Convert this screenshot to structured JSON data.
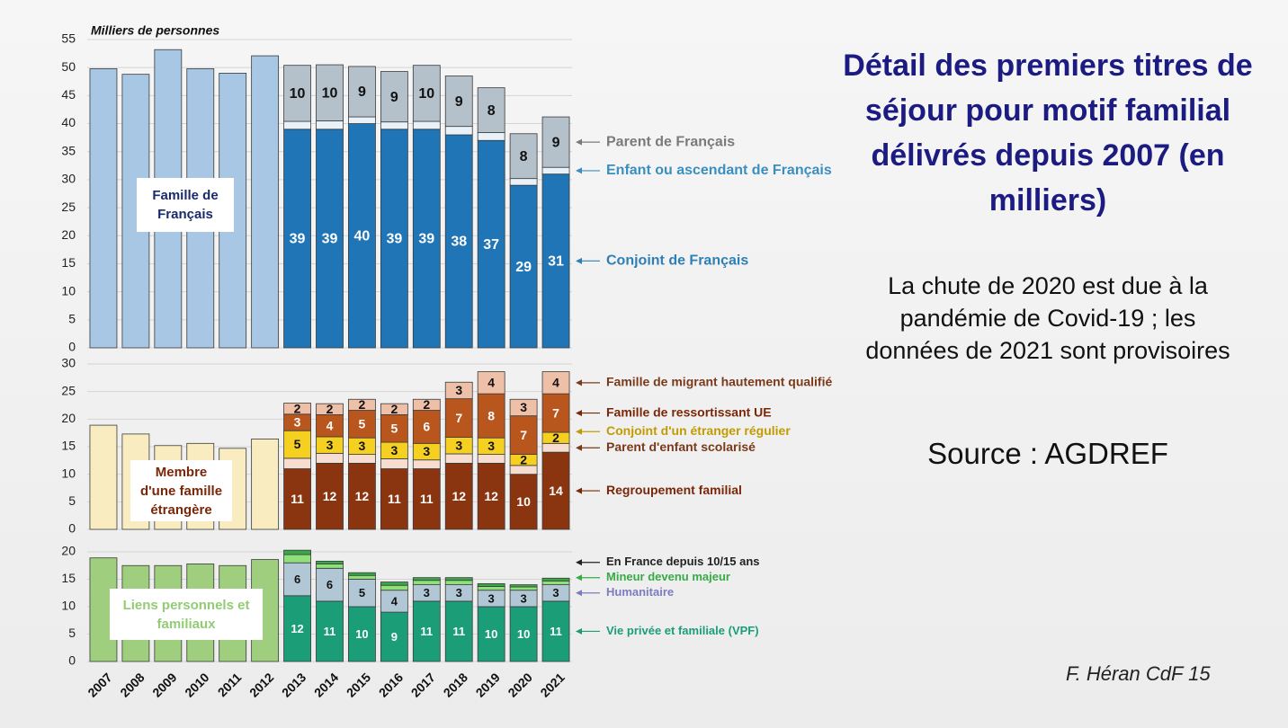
{
  "slide": {
    "title": "Détail des premiers titres de séjour pour motif familial délivrés depuis 2007 (en milliers)",
    "note": "La chute de 2020 est due à la pandémie de Covid-19 ; les données de 2021 sont provisoires",
    "source": "Source : AGDREF",
    "author": "F. Héran CdF  15"
  },
  "chart_data": [
    {
      "type": "bar",
      "stacked": true,
      "y_label": "Milliers de personnes",
      "ylim": [
        0,
        55
      ],
      "yticks": [
        0,
        5,
        10,
        15,
        20,
        25,
        30,
        35,
        40,
        45,
        50,
        55
      ],
      "grid": true,
      "series": [
        {
          "name": "Famille de Français",
          "color": "#a8c7e4",
          "label_color": "#1a2a6a",
          "values": [
            49.8,
            48.8,
            53.2,
            49.8,
            49,
            52.1,
            null,
            null,
            null,
            null,
            null,
            null,
            null,
            null,
            null
          ]
        },
        {
          "name": "Conjoint de Français",
          "color": "#1f75b6",
          "label_color": "#2f7fb5",
          "values": [
            null,
            null,
            null,
            null,
            null,
            null,
            39,
            39,
            40,
            39,
            39,
            38,
            37,
            29,
            31
          ]
        },
        {
          "name": "Enfant ou ascendant de Français",
          "color": "#e9f2f8",
          "label_color": "#3b8fc0",
          "values": [
            null,
            null,
            null,
            null,
            null,
            null,
            1.4,
            1.5,
            1.2,
            1.3,
            1.4,
            1.5,
            1.4,
            1.2,
            1.2
          ]
        },
        {
          "name": "Parent de Français",
          "color": "#b4c0ca",
          "label_color": "#7a7a7a",
          "values": [
            null,
            null,
            null,
            null,
            null,
            null,
            10,
            10,
            9,
            9,
            10,
            9,
            8,
            8,
            9
          ]
        }
      ]
    },
    {
      "type": "bar",
      "stacked": true,
      "ylim": [
        0,
        30
      ],
      "yticks": [
        0,
        5,
        10,
        15,
        20,
        25,
        30
      ],
      "grid": true,
      "series": [
        {
          "name": "Membre d'une famille étrangère",
          "color": "#f8ecc0",
          "label_color": "#7a2608",
          "values": [
            18.9,
            17.3,
            15.2,
            15.6,
            14.7,
            16.4,
            null,
            null,
            null,
            null,
            null,
            null,
            null,
            null,
            null
          ]
        },
        {
          "name": "Regroupement familial",
          "color": "#8a3410",
          "label_color": "#7a2608",
          "values": [
            null,
            null,
            null,
            null,
            null,
            null,
            11,
            12,
            12,
            11,
            11,
            12,
            12,
            10,
            14
          ]
        },
        {
          "name": "Parent d'enfant scolarisé",
          "color": "#f6ddd0",
          "label_color": "#7a3a1a",
          "values": [
            null,
            null,
            null,
            null,
            null,
            null,
            1.9,
            1.8,
            1.6,
            1.8,
            1.6,
            1.7,
            1.6,
            1.6,
            1.6
          ]
        },
        {
          "name": "Conjoint d'un étranger régulier",
          "color": "#f5d020",
          "label_color": "#c29b00",
          "values": [
            null,
            null,
            null,
            null,
            null,
            null,
            5,
            3,
            3,
            3,
            3,
            3,
            3,
            2,
            2
          ]
        },
        {
          "name": "Famille de ressortissant UE",
          "color": "#b8561e",
          "label_color": "#7a2608",
          "values": [
            null,
            null,
            null,
            null,
            null,
            null,
            3,
            4,
            5,
            5,
            6,
            7,
            8,
            7,
            7
          ]
        },
        {
          "name": "Famille de migrant hautement qualifié",
          "color": "#eec0a8",
          "label_color": "#7a3a1a",
          "values": [
            null,
            null,
            null,
            null,
            null,
            null,
            2,
            2,
            2,
            2,
            2,
            3,
            4,
            3,
            4
          ]
        }
      ]
    },
    {
      "type": "bar",
      "stacked": true,
      "ylim": [
        0,
        20
      ],
      "yticks": [
        0,
        5,
        10,
        15,
        20
      ],
      "grid": true,
      "categories": [
        "2007",
        "2008",
        "2009",
        "2010",
        "2011",
        "2012",
        "2013",
        "2014",
        "2015",
        "2016",
        "2017",
        "2018",
        "2019",
        "2020",
        "2021"
      ],
      "series": [
        {
          "name": "Liens personnels et familiaux",
          "color": "#9fcf7e",
          "label_color": "#92cc74",
          "values": [
            18.9,
            17.5,
            17.5,
            17.8,
            17.5,
            18.6,
            null,
            null,
            null,
            null,
            null,
            null,
            null,
            null,
            null
          ]
        },
        {
          "name": "Vie privée et familiale (VPF)",
          "color": "#1b9e78",
          "label_color": "#1b9e78",
          "values": [
            null,
            null,
            null,
            null,
            null,
            null,
            12,
            11,
            10,
            9,
            11,
            11,
            10,
            10,
            11
          ]
        },
        {
          "name": "Humanitaire",
          "color": "#b1c7d6",
          "label_color": "#7c7cc0",
          "values": [
            null,
            null,
            null,
            null,
            null,
            null,
            6,
            6,
            5,
            4,
            3,
            3,
            3,
            3,
            3
          ]
        },
        {
          "name": "Mineur devenu majeur",
          "color": "#8fe07a",
          "label_color": "#35ac45",
          "values": [
            null,
            null,
            null,
            null,
            null,
            null,
            1.5,
            0.8,
            0.7,
            0.9,
            0.8,
            0.8,
            0.7,
            0.6,
            0.7
          ]
        },
        {
          "name": "En France depuis 10/15 ans",
          "color": "#3aa84a",
          "label_color": "#222222",
          "values": [
            null,
            null,
            null,
            null,
            null,
            null,
            0.8,
            0.5,
            0.5,
            0.6,
            0.5,
            0.5,
            0.5,
            0.4,
            0.5
          ]
        }
      ]
    }
  ]
}
